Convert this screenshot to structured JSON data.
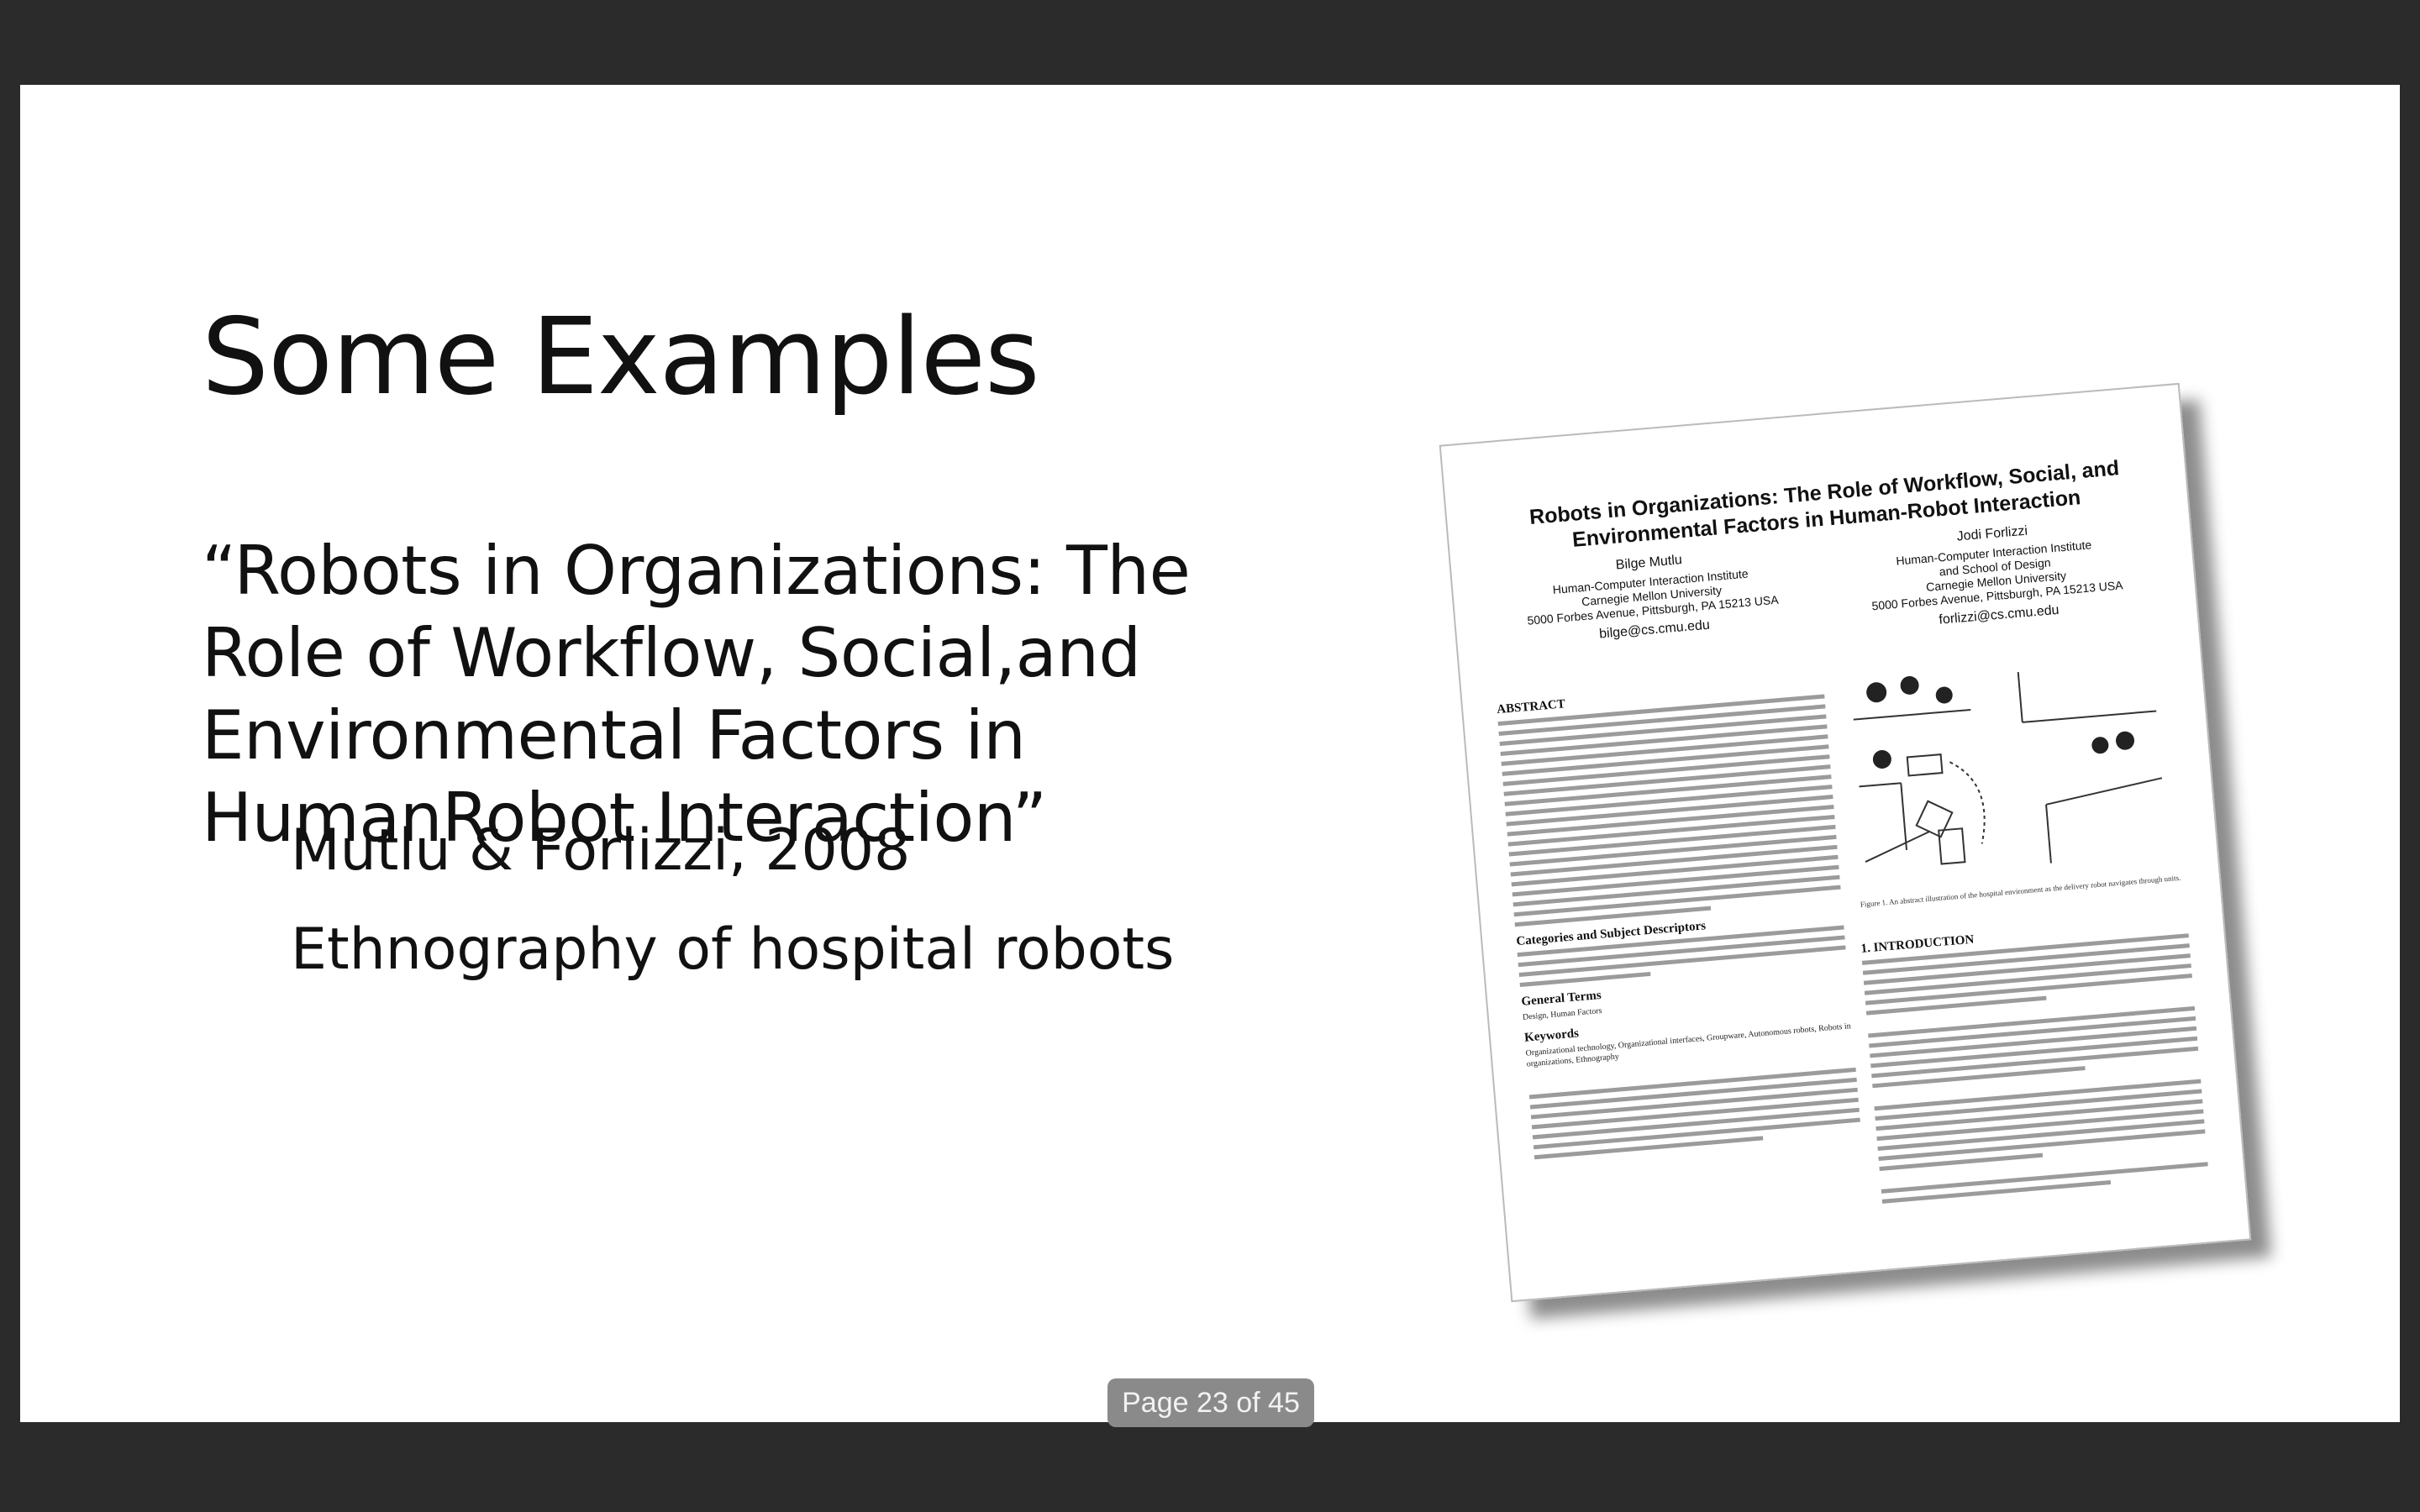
{
  "slide": {
    "title": "Some Examples",
    "quote": "“Robots in Organizations: The Role of Workflow, Social,and Environmental Factors in HumanRobot Interaction”",
    "citation": "Mutlu & Forlizzi, 2008",
    "description": "Ethnography of hospital robots"
  },
  "paper": {
    "title": "Robots in Organizations: The Role of Workflow, Social, and Environmental Factors in Human-Robot Interaction",
    "author1": {
      "name": "Bilge Mutlu",
      "affiliation": "Human-Computer Interaction Institute",
      "university": "Carnegie Mellon University",
      "address": "5000 Forbes Avenue, Pittsburgh, PA 15213 USA",
      "email": "bilge@cs.cmu.edu"
    },
    "author2": {
      "name": "Jodi Forlizzi",
      "affiliation": "Human-Computer Interaction Institute",
      "affiliation2": "and School of Design",
      "university": "Carnegie Mellon University",
      "address": "5000 Forbes Avenue, Pittsburgh, PA 15213 USA",
      "email": "forlizzi@cs.cmu.edu"
    },
    "sections": {
      "abstract": "ABSTRACT",
      "categories": "Categories and Subject Descriptors",
      "general_terms": "General Terms",
      "general_terms_body": "Design, Human Factors",
      "keywords": "Keywords",
      "keywords_body": "Organizational technology, Organizational interfaces, Groupware, Autonomous robots, Robots in organizations, Ethnography",
      "introduction": "1. INTRODUCTION"
    },
    "figure_caption": "Figure 1. An abstract illustration of the hospital environment as the delivery robot navigates through units."
  },
  "viewer": {
    "page_indicator": "Page 23 of 45"
  }
}
